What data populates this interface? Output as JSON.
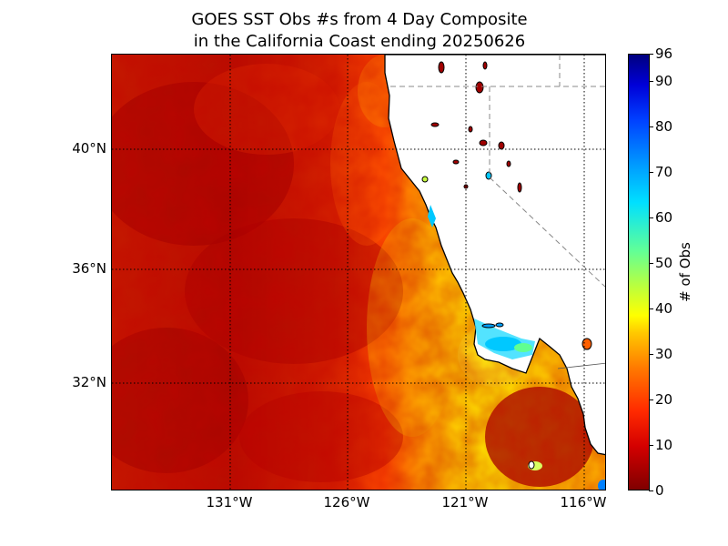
{
  "title": {
    "line1": "GOES SST Obs #s from 4 Day Composite",
    "line2": "in the California Coast ending 20250626"
  },
  "map": {
    "lat_ticks": [
      "40°N",
      "36°N",
      "32°N"
    ],
    "lon_ticks": [
      "131°W",
      "126°W",
      "121°W",
      "116°W"
    ],
    "land_color": "#ffffff",
    "coastline_color": "#000000",
    "gridline_style": "dotted",
    "border_style": "dashed gray"
  },
  "colorbar": {
    "label": "# of Obs",
    "ticks": [
      "96",
      "90",
      "80",
      "70",
      "60",
      "50",
      "40",
      "30",
      "20",
      "10",
      "0"
    ],
    "range": [
      0,
      96
    ],
    "colormap": "jet-reversed (dark red = 0, dark blue = 96)"
  }
}
